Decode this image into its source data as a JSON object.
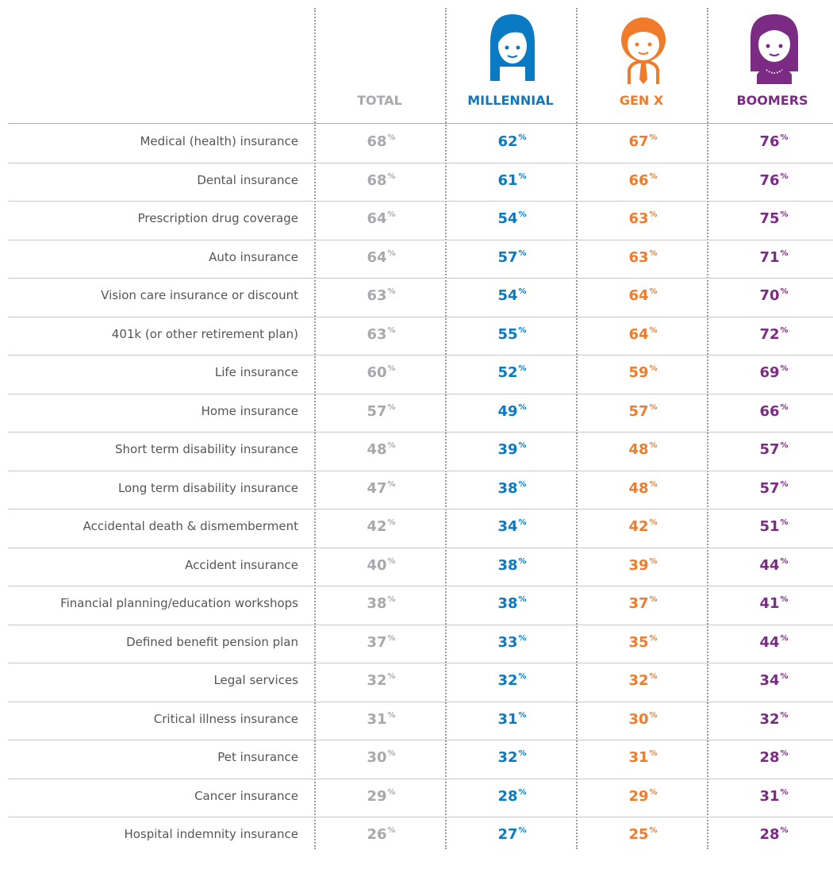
{
  "table": {
    "percent_sign": "%",
    "columns": [
      {
        "name": "TOTAL",
        "color": "#a7a9ac"
      },
      {
        "name": "MILLENNIAL",
        "color": "#0a7ac2"
      },
      {
        "name": "GEN X",
        "color": "#f07b2a"
      },
      {
        "name": "BOOMERS",
        "color": "#7b2b84"
      }
    ],
    "rows": [
      {
        "label": "Medical (health) insurance",
        "values": [
          68,
          62,
          67,
          76
        ]
      },
      {
        "label": "Dental insurance",
        "values": [
          68,
          61,
          66,
          76
        ]
      },
      {
        "label": "Prescription drug coverage",
        "values": [
          64,
          54,
          63,
          75
        ]
      },
      {
        "label": "Auto insurance",
        "values": [
          64,
          57,
          63,
          71
        ]
      },
      {
        "label": "Vision care insurance or discount",
        "values": [
          63,
          54,
          64,
          70
        ]
      },
      {
        "label": "401k (or other retirement plan)",
        "values": [
          63,
          55,
          64,
          72
        ]
      },
      {
        "label": "Life insurance",
        "values": [
          60,
          52,
          59,
          69
        ]
      },
      {
        "label": "Home insurance",
        "values": [
          57,
          49,
          57,
          66
        ]
      },
      {
        "label": "Short term disability insurance",
        "values": [
          48,
          39,
          48,
          57
        ]
      },
      {
        "label": "Long term disability insurance",
        "values": [
          47,
          38,
          48,
          57
        ]
      },
      {
        "label": "Accidental death & dismemberment",
        "values": [
          42,
          34,
          42,
          51
        ]
      },
      {
        "label": "Accident insurance",
        "values": [
          40,
          38,
          39,
          44
        ]
      },
      {
        "label": "Financial planning/education workshops",
        "values": [
          38,
          38,
          37,
          41
        ]
      },
      {
        "label": "Defined benefit pension plan",
        "values": [
          37,
          33,
          35,
          44
        ]
      },
      {
        "label": "Legal services",
        "values": [
          32,
          32,
          32,
          34
        ]
      },
      {
        "label": "Critical illness insurance",
        "values": [
          31,
          31,
          30,
          32
        ]
      },
      {
        "label": "Pet insurance",
        "values": [
          30,
          32,
          31,
          28
        ]
      },
      {
        "label": "Cancer insurance",
        "values": [
          29,
          28,
          29,
          31
        ]
      },
      {
        "label": "Hospital indemnity insurance",
        "values": [
          26,
          27,
          25,
          28
        ]
      }
    ]
  }
}
